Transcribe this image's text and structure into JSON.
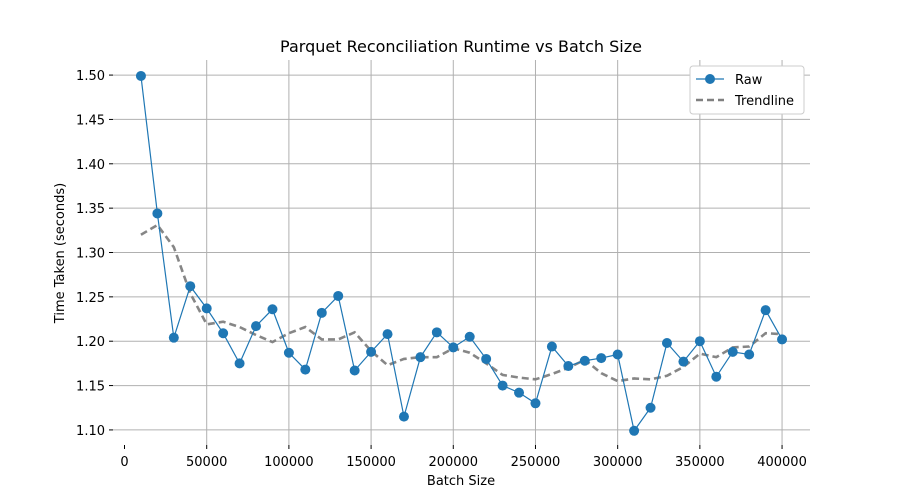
{
  "chart_data": {
    "type": "line",
    "title": "Parquet Reconciliation Runtime vs Batch Size",
    "xlabel": "Batch Size",
    "ylabel": "Time Taken (seconds)",
    "xlim": [
      -7000,
      417000
    ],
    "ylim": [
      1.083,
      1.517
    ],
    "xticks": [
      0,
      50000,
      100000,
      150000,
      200000,
      250000,
      300000,
      350000,
      400000
    ],
    "yticks": [
      1.1,
      1.15,
      1.2,
      1.25,
      1.3,
      1.35,
      1.4,
      1.45,
      1.5
    ],
    "ytick_labels": [
      "1.10",
      "1.15",
      "1.20",
      "1.25",
      "1.30",
      "1.35",
      "1.40",
      "1.45",
      "1.50"
    ],
    "grid": true,
    "legend_position": "top-right",
    "x": [
      10000,
      20000,
      30000,
      40000,
      50000,
      60000,
      70000,
      80000,
      90000,
      100000,
      110000,
      120000,
      130000,
      140000,
      150000,
      160000,
      170000,
      180000,
      190000,
      200000,
      210000,
      220000,
      230000,
      240000,
      250000,
      260000,
      270000,
      280000,
      290000,
      300000,
      310000,
      320000,
      330000,
      340000,
      350000,
      360000,
      370000,
      380000,
      390000,
      400000
    ],
    "series": [
      {
        "name": "Raw",
        "color": "#1f77b4",
        "style": "solid-with-markers",
        "values": [
          1.499,
          1.344,
          1.204,
          1.262,
          1.237,
          1.209,
          1.175,
          1.217,
          1.236,
          1.187,
          1.168,
          1.232,
          1.251,
          1.167,
          1.188,
          1.208,
          1.115,
          1.182,
          1.21,
          1.193,
          1.205,
          1.18,
          1.15,
          1.142,
          1.13,
          1.194,
          1.172,
          1.178,
          1.181,
          1.185,
          1.099,
          1.125,
          1.198,
          1.177,
          1.2,
          1.16,
          1.188,
          1.185,
          1.235,
          1.202
        ]
      },
      {
        "name": "Trendline",
        "color": "#808080",
        "style": "dashed",
        "values": [
          1.32,
          1.331,
          1.306,
          1.254,
          1.219,
          1.222,
          1.216,
          1.207,
          1.199,
          1.209,
          1.216,
          1.202,
          1.202,
          1.21,
          1.189,
          1.173,
          1.18,
          1.182,
          1.182,
          1.192,
          1.187,
          1.175,
          1.162,
          1.159,
          1.157,
          1.163,
          1.17,
          1.179,
          1.164,
          1.155,
          1.158,
          1.157,
          1.161,
          1.171,
          1.186,
          1.182,
          1.193,
          1.194,
          1.209,
          1.208
        ]
      }
    ]
  }
}
